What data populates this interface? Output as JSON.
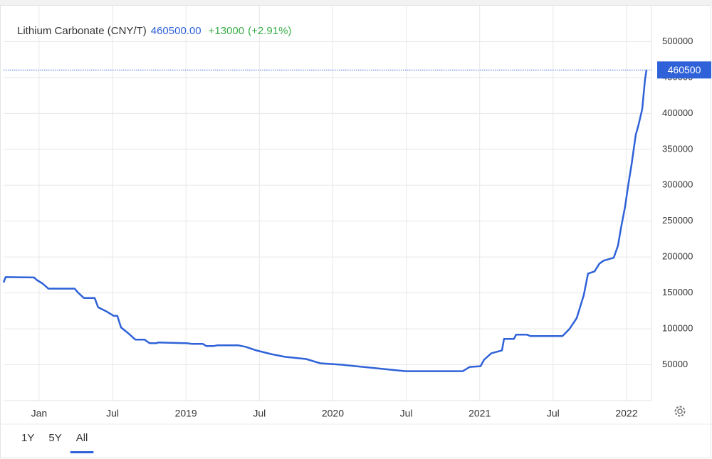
{
  "chart_data": {
    "type": "line",
    "title": "Lithium Carbonate (CNY/T)",
    "price": "460500.00",
    "change": "+13000",
    "change_pct": "(+2.91%)",
    "x": [
      2017.758,
      2017.772,
      2017.966,
      2017.985,
      2018.024,
      2018.063,
      2018.242,
      2018.267,
      2018.305,
      2018.378,
      2018.402,
      2018.461,
      2018.509,
      2018.533,
      2018.558,
      2018.606,
      2018.655,
      2018.718,
      2018.752,
      2018.8,
      2018.81,
      2019.004,
      2019.042,
      2019.115,
      2019.139,
      2019.188,
      2019.212,
      2019.358,
      2019.406,
      2019.479,
      2019.576,
      2019.673,
      2019.818,
      2019.915,
      2020.061,
      2020.158,
      2020.303,
      2020.448,
      2020.497,
      2020.885,
      2020.933,
      2021.006,
      2021.03,
      2021.079,
      2021.152,
      2021.166,
      2021.234,
      2021.248,
      2021.321,
      2021.345,
      2021.564,
      2021.612,
      2021.661,
      2021.709,
      2021.738,
      2021.782,
      2021.816,
      2021.845,
      2021.913,
      2021.942,
      2021.961,
      2021.99,
      2022.01,
      2022.034,
      2022.063,
      2022.082,
      2022.107,
      2022.126,
      2022.136
    ],
    "series": [
      {
        "name": "Lithium Carbonate",
        "color": "#2f62d8",
        "values": [
          164500,
          172000,
          171500,
          168000,
          163000,
          156000,
          156000,
          150000,
          143000,
          143000,
          130000,
          124000,
          118000,
          118000,
          102000,
          94000,
          85000,
          85000,
          80000,
          80000,
          81000,
          80000,
          79000,
          79000,
          76000,
          76000,
          77000,
          77000,
          75000,
          70000,
          65000,
          61000,
          58000,
          52000,
          50000,
          48000,
          45000,
          42000,
          41000,
          41000,
          47000,
          48000,
          57000,
          66000,
          70000,
          86000,
          86000,
          92000,
          92000,
          90000,
          90000,
          100000,
          115000,
          147000,
          177000,
          180000,
          191000,
          195000,
          199000,
          216000,
          239000,
          270000,
          298000,
          328000,
          370000,
          384000,
          406000,
          447000,
          460500
        ]
      }
    ],
    "xlim": [
      2017.758,
      2022.17
    ],
    "xticks": [
      {
        "value": 2018.0,
        "label": "Jan"
      },
      {
        "value": 2018.5,
        "label": "Jul"
      },
      2019,
      {
        "value": 2019.5,
        "label": "Jul"
      },
      2020,
      {
        "value": 2020.5,
        "label": "Jul"
      },
      2021,
      {
        "value": 2021.5,
        "label": "Jul"
      },
      2022
    ],
    "ylim": [
      0,
      550000
    ],
    "yticks": [
      50000,
      100000,
      150000,
      200000,
      250000,
      300000,
      350000,
      400000,
      450000,
      500000
    ],
    "grid": true,
    "ranges": [
      "1Y",
      "5Y",
      "All"
    ],
    "active_range": "All"
  }
}
